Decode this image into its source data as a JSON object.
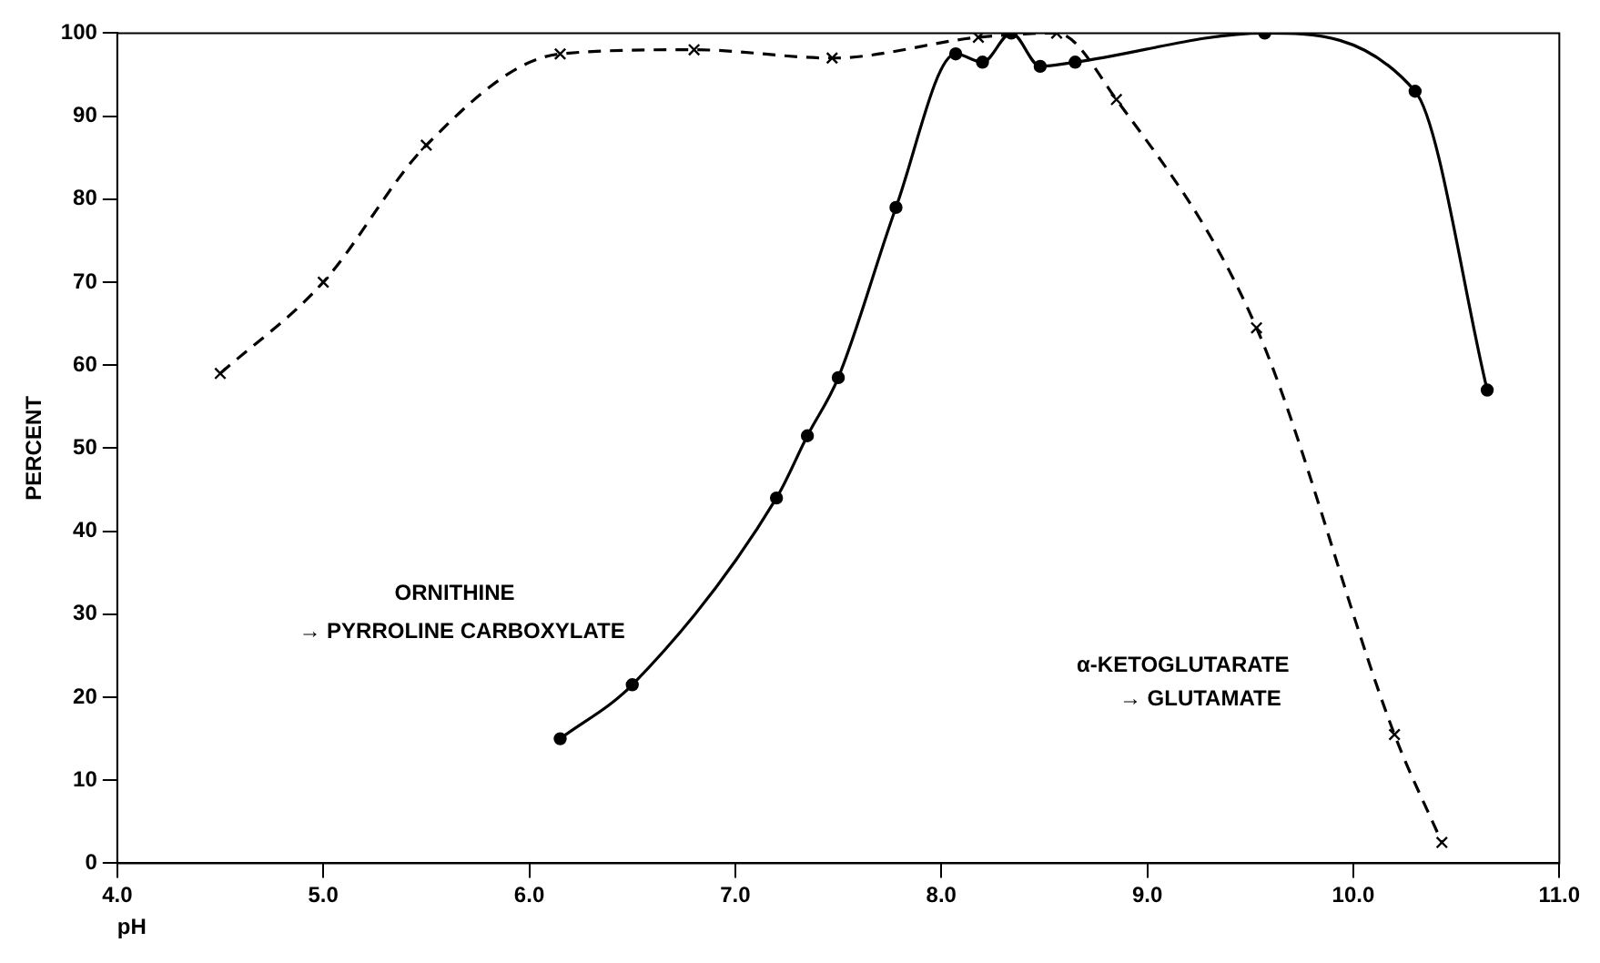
{
  "chart_data": {
    "type": "line",
    "xlabel": "pH",
    "ylabel": "PERCENT",
    "xlim": [
      4,
      11
    ],
    "xticks": [
      {
        "value": 4,
        "label": "4.0"
      },
      {
        "value": 5,
        "label": "5.0"
      },
      {
        "value": 6,
        "label": "6.0"
      },
      {
        "value": 7,
        "label": "7.0"
      },
      {
        "value": 8,
        "label": "8.0"
      },
      {
        "value": 9,
        "label": "9.0"
      },
      {
        "value": 10,
        "label": "10.0"
      },
      {
        "value": 11,
        "label": "11.0"
      }
    ],
    "ylim": [
      0,
      100
    ],
    "yticks": [
      0,
      10,
      20,
      30,
      40,
      50,
      60,
      70,
      80,
      90,
      100
    ],
    "grid": false,
    "legend": false,
    "series": [
      {
        "color": "#000000",
        "marker": "cross",
        "line_style": "dashed",
        "x": [
          4.5,
          5.0,
          5.5,
          6.15,
          6.8,
          7.47,
          8.18,
          8.56,
          8.85,
          9.53,
          10.2,
          10.43
        ],
        "values": [
          59,
          70,
          86.5,
          97.5,
          98,
          97,
          99.5,
          100,
          92,
          64.5,
          15.5,
          2.5
        ]
      },
      {
        "color": "#000000",
        "marker": "circle",
        "line_style": "solid",
        "x": [
          6.15,
          6.5,
          7.2,
          7.35,
          7.5,
          7.78,
          8.07,
          8.2,
          8.34,
          8.48,
          8.65,
          9.57,
          10.3,
          10.65
        ],
        "values": [
          15,
          21.5,
          44,
          51.5,
          58.5,
          79,
          97.5,
          96.5,
          100,
          96,
          96.5,
          100,
          93,
          57
        ]
      }
    ],
    "annotations": [
      "ORNITHINE",
      "→ PYRROLINE CARBOXYLATE",
      "α-KETOGLUTARATE",
      "→ GLUTAMATE"
    ]
  }
}
